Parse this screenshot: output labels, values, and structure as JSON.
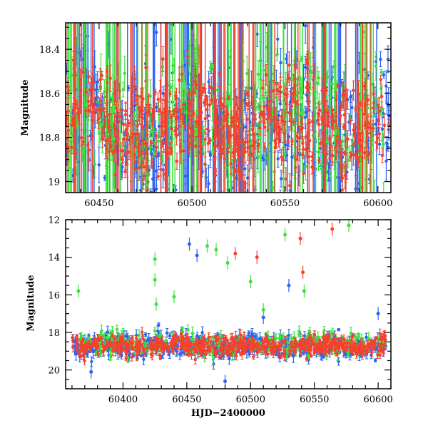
{
  "chart_data": [
    {
      "type": "scatter",
      "title": "",
      "xlabel": "",
      "ylabel": "Magnitude",
      "xlim": [
        60432,
        60607
      ],
      "ylim": [
        18.28,
        19.05
      ],
      "y_inverted": true,
      "xticks": [
        60450,
        60500,
        60550,
        60600
      ],
      "yticks": [
        18.4,
        18.6,
        18.8,
        19
      ],
      "grid": false,
      "legend": "none",
      "series": [
        {
          "color": "#2b63f0",
          "x_range": [
            60432,
            60606
          ],
          "y_mean": 18.75,
          "y_spread": 0.3,
          "n_points": 420
        },
        {
          "color": "#3ee03e",
          "x_range": [
            60432,
            60606
          ],
          "y_mean": 18.72,
          "y_spread": 0.3,
          "n_points": 280
        },
        {
          "color": "#f5412e",
          "x_range": [
            60432,
            60606
          ],
          "y_mean": 18.74,
          "y_spread": 0.22,
          "n_points": 520
        }
      ]
    },
    {
      "type": "scatter",
      "title": "",
      "xlabel": "HJD−2400000",
      "ylabel": "Magnitude",
      "xlim": [
        60355,
        60610
      ],
      "ylim": [
        12,
        21
      ],
      "y_inverted": true,
      "xticks": [
        60400,
        60450,
        60500,
        60550,
        60600
      ],
      "yticks": [
        12,
        14,
        16,
        18,
        20
      ],
      "grid": false,
      "legend": "none",
      "series": [
        {
          "color": "#2b63f0",
          "x_range": [
            60360,
            60606
          ],
          "y_mean": 18.75,
          "y_spread": 0.55,
          "n_points": 520,
          "outliers": [
            [
              60452,
              13.3
            ],
            [
              60458,
              13.9
            ],
            [
              60530,
              15.5
            ],
            [
              60510,
              17.2
            ],
            [
              60480,
              20.6
            ],
            [
              60375,
              20.1
            ],
            [
              60600,
              17.0
            ]
          ]
        },
        {
          "color": "#3ee03e",
          "x_range": [
            60360,
            60606
          ],
          "y_mean": 18.6,
          "y_spread": 0.55,
          "n_points": 300,
          "outliers": [
            [
              60365,
              15.8
            ],
            [
              60425,
              14.1
            ],
            [
              60425,
              15.2
            ],
            [
              60466,
              13.4
            ],
            [
              60473,
              13.6
            ],
            [
              60482,
              14.3
            ],
            [
              60500,
              15.3
            ],
            [
              60527,
              12.8
            ],
            [
              60542,
              15.8
            ],
            [
              60577,
              12.3
            ],
            [
              60426,
              16.5
            ],
            [
              60440,
              16.1
            ],
            [
              60510,
              16.8
            ]
          ]
        },
        {
          "color": "#f5412e",
          "x_range": [
            60360,
            60606
          ],
          "y_mean": 18.72,
          "y_spread": 0.45,
          "n_points": 560,
          "outliers": [
            [
              60488,
              13.8
            ],
            [
              60505,
              14.0
            ],
            [
              60539,
              13.0
            ],
            [
              60541,
              14.8
            ],
            [
              60564,
              12.5
            ],
            [
              60603,
              18.3
            ]
          ]
        }
      ]
    }
  ]
}
